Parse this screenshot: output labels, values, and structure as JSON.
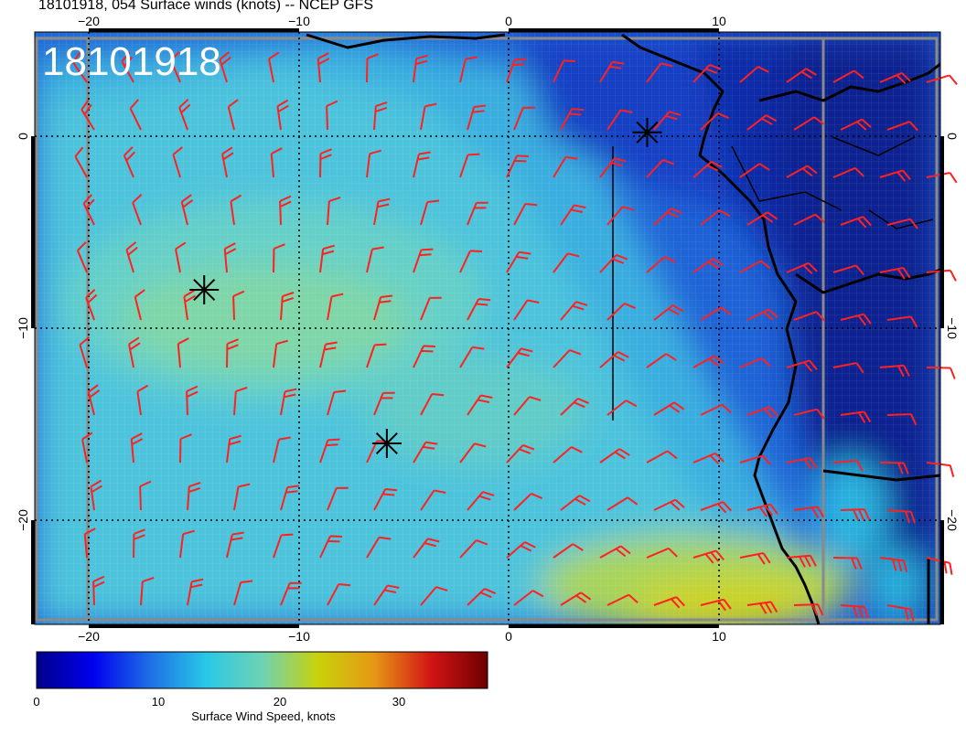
{
  "header": {
    "title": "18101918, 054 Surface winds (knots) -- NCEP GFS"
  },
  "stamp": "18101918",
  "axes": {
    "lon_ticks": [
      "−20",
      "−10",
      "0",
      "10"
    ],
    "lat_ticks": [
      "0",
      "−10",
      "−20"
    ]
  },
  "colorbar": {
    "title": "Surface Wind Speed, knots",
    "ticks": [
      "0",
      "10",
      "20",
      "30"
    ],
    "range": [
      0,
      37
    ],
    "colors": [
      "#00008b",
      "#0000ee",
      "#1e6ee6",
      "#28c8e6",
      "#6ed2b4",
      "#c8d20a",
      "#e69614",
      "#d21414",
      "#6e0000"
    ]
  },
  "markers": [
    {
      "name": "star-marker-1",
      "lon": -14.5,
      "lat": -8.0
    },
    {
      "name": "star-marker-2",
      "lon": -5.8,
      "lat": -16.0
    },
    {
      "name": "star-marker-3",
      "lon": 6.6,
      "lat": 0.2
    }
  ],
  "styles": {
    "barb_color": "#ff2020",
    "coast_color": "#000000",
    "grid_color": "#000000"
  }
}
